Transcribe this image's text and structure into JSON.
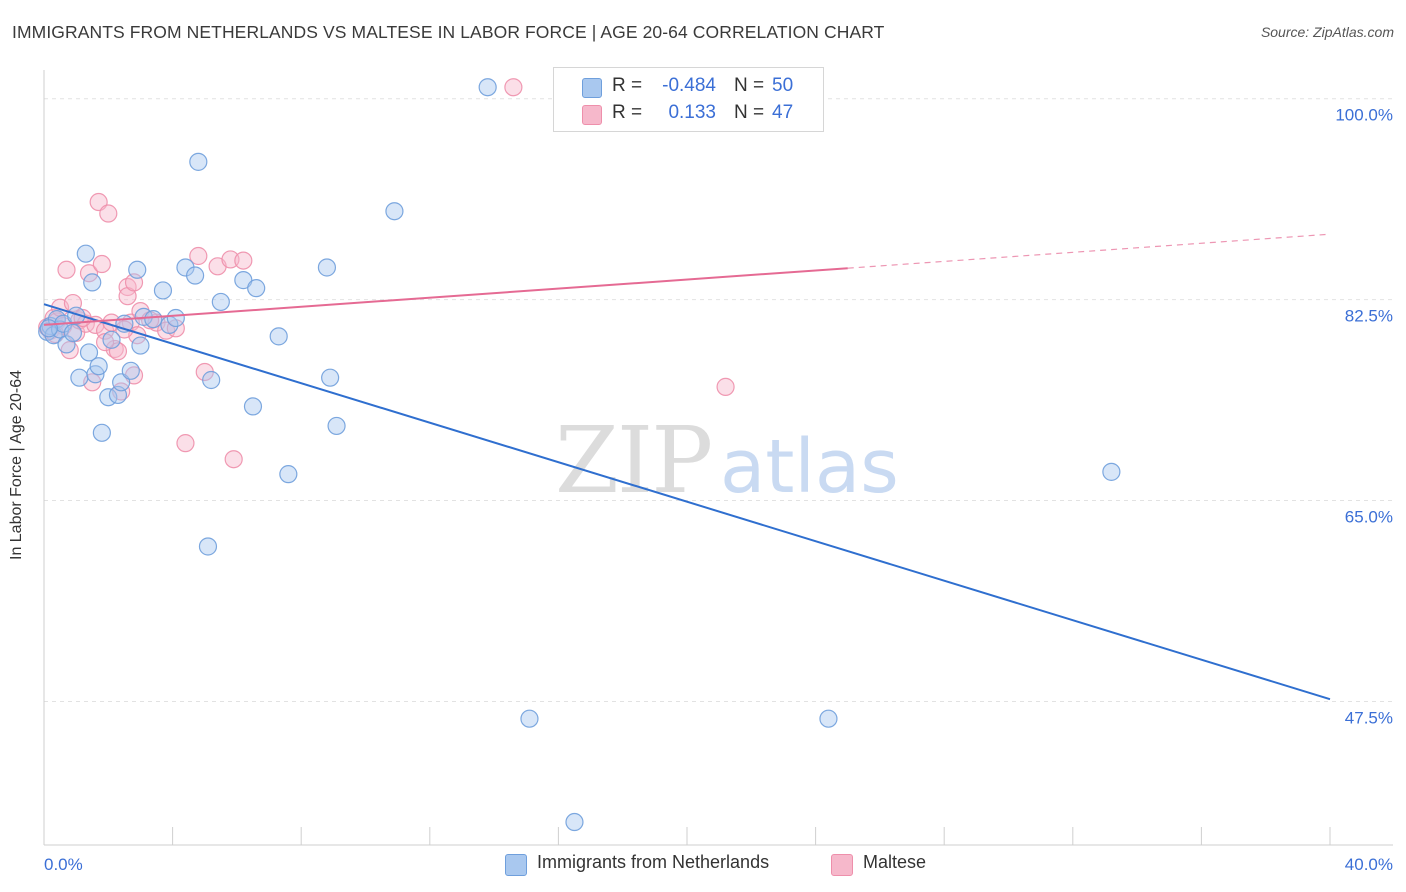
{
  "header": {
    "title": "IMMIGRANTS FROM NETHERLANDS VS MALTESE IN LABOR FORCE | AGE 20-64 CORRELATION CHART",
    "source": "Source: ZipAtlas.com"
  },
  "watermark": {
    "part1": "ZIP",
    "part2": "atlas"
  },
  "legend_top": {
    "rows": [
      {
        "r_label": "R =",
        "r_value": "-0.484",
        "n_label": "N =",
        "n_value": "50"
      },
      {
        "r_label": "R =",
        "r_value": "0.133",
        "n_label": "N =",
        "n_value": "47"
      }
    ]
  },
  "legend_bottom": {
    "items": [
      {
        "label": "Immigrants from Netherlands"
      },
      {
        "label": "Maltese"
      }
    ]
  },
  "colors": {
    "blue_fill": "#a9c8ef",
    "blue_stroke": "#6f9fdc",
    "blue_line": "#2f6fcf",
    "pink_fill": "#f6b8cb",
    "pink_stroke": "#ee8fab",
    "pink_line": "#e56a93",
    "tick_label": "#3b6fd6",
    "grid": "#e2e2e2"
  },
  "chart_data": {
    "type": "scatter",
    "title": "IMMIGRANTS FROM NETHERLANDS VS MALTESE IN LABOR FORCE | AGE 20-64 CORRELATION CHART",
    "xlabel": "",
    "ylabel": "In Labor Force | Age 20-64",
    "xlim": [
      0,
      40
    ],
    "ylim": [
      35,
      102.5
    ],
    "x_tick_labels": [
      "0.0%",
      "40.0%"
    ],
    "y_ticks": [
      47.5,
      65.0,
      82.5,
      100.0
    ],
    "y_tick_labels": [
      "47.5%",
      "65.0%",
      "82.5%",
      "100.0%"
    ],
    "grid": true,
    "series": [
      {
        "name": "Immigrants from Netherlands",
        "color": "blue",
        "r": -0.484,
        "n": 50,
        "points": [
          [
            0.1,
            79.7
          ],
          [
            0.2,
            80.2
          ],
          [
            0.3,
            79.4
          ],
          [
            0.4,
            80.8
          ],
          [
            0.5,
            79.9
          ],
          [
            0.6,
            80.4
          ],
          [
            0.7,
            78.6
          ],
          [
            0.9,
            79.6
          ],
          [
            1.0,
            81.1
          ],
          [
            1.1,
            75.7
          ],
          [
            1.3,
            86.5
          ],
          [
            1.4,
            77.9
          ],
          [
            1.5,
            84.0
          ],
          [
            1.6,
            76.0
          ],
          [
            1.7,
            76.7
          ],
          [
            1.8,
            70.9
          ],
          [
            2.0,
            74.0
          ],
          [
            2.1,
            79.0
          ],
          [
            2.3,
            74.2
          ],
          [
            2.4,
            75.3
          ],
          [
            2.5,
            80.4
          ],
          [
            2.7,
            76.3
          ],
          [
            2.9,
            85.1
          ],
          [
            3.0,
            78.5
          ],
          [
            3.1,
            81.0
          ],
          [
            3.4,
            80.8
          ],
          [
            3.7,
            83.3
          ],
          [
            3.9,
            80.3
          ],
          [
            4.1,
            80.9
          ],
          [
            4.4,
            85.3
          ],
          [
            4.7,
            84.6
          ],
          [
            4.8,
            94.5
          ],
          [
            5.1,
            61.0
          ],
          [
            5.2,
            75.5
          ],
          [
            5.5,
            82.3
          ],
          [
            6.2,
            84.2
          ],
          [
            6.6,
            83.5
          ],
          [
            6.5,
            73.2
          ],
          [
            7.3,
            79.3
          ],
          [
            7.6,
            67.3
          ],
          [
            8.8,
            85.3
          ],
          [
            8.9,
            75.7
          ],
          [
            9.1,
            71.5
          ],
          [
            10.9,
            90.2
          ],
          [
            13.8,
            101.0
          ],
          [
            15.1,
            46.0
          ],
          [
            16.5,
            37.0
          ],
          [
            24.4,
            46.0
          ],
          [
            33.2,
            67.5
          ],
          [
            0.15,
            80.0
          ]
        ],
        "trend": {
          "x": [
            0,
            40
          ],
          "y": [
            82.1,
            47.7
          ]
        }
      },
      {
        "name": "Maltese",
        "color": "pink",
        "r": 0.133,
        "n": 47,
        "points": [
          [
            0.1,
            80.1
          ],
          [
            0.2,
            79.8
          ],
          [
            0.3,
            80.9
          ],
          [
            0.4,
            80.6
          ],
          [
            0.5,
            81.8
          ],
          [
            0.6,
            80.2
          ],
          [
            0.7,
            85.1
          ],
          [
            0.8,
            78.1
          ],
          [
            0.9,
            82.2
          ],
          [
            1.0,
            79.6
          ],
          [
            1.1,
            80.7
          ],
          [
            1.3,
            80.4
          ],
          [
            1.4,
            84.8
          ],
          [
            1.5,
            75.3
          ],
          [
            1.6,
            80.3
          ],
          [
            1.7,
            91.0
          ],
          [
            1.8,
            85.6
          ],
          [
            1.9,
            79.8
          ],
          [
            2.0,
            90.0
          ],
          [
            2.1,
            80.5
          ],
          [
            2.2,
            78.2
          ],
          [
            2.3,
            78.0
          ],
          [
            2.4,
            74.5
          ],
          [
            2.6,
            83.6
          ],
          [
            2.6,
            82.8
          ],
          [
            2.7,
            80.5
          ],
          [
            2.8,
            75.9
          ],
          [
            2.9,
            79.4
          ],
          [
            3.0,
            81.5
          ],
          [
            2.8,
            84.0
          ],
          [
            3.5,
            80.5
          ],
          [
            3.8,
            79.8
          ],
          [
            4.1,
            80.0
          ],
          [
            4.4,
            70.0
          ],
          [
            4.8,
            86.3
          ],
          [
            5.0,
            76.2
          ],
          [
            5.4,
            85.4
          ],
          [
            5.8,
            86.0
          ],
          [
            5.9,
            68.6
          ],
          [
            6.2,
            85.9
          ],
          [
            14.6,
            101.0
          ],
          [
            21.2,
            74.9
          ],
          [
            3.3,
            80.7
          ],
          [
            1.2,
            80.9
          ],
          [
            0.35,
            79.5
          ],
          [
            1.9,
            78.8
          ],
          [
            2.5,
            79.9
          ]
        ],
        "trend": {
          "x": [
            0,
            40
          ],
          "y": [
            80.3,
            88.2
          ],
          "solid_until_x": 25
        }
      }
    ]
  }
}
